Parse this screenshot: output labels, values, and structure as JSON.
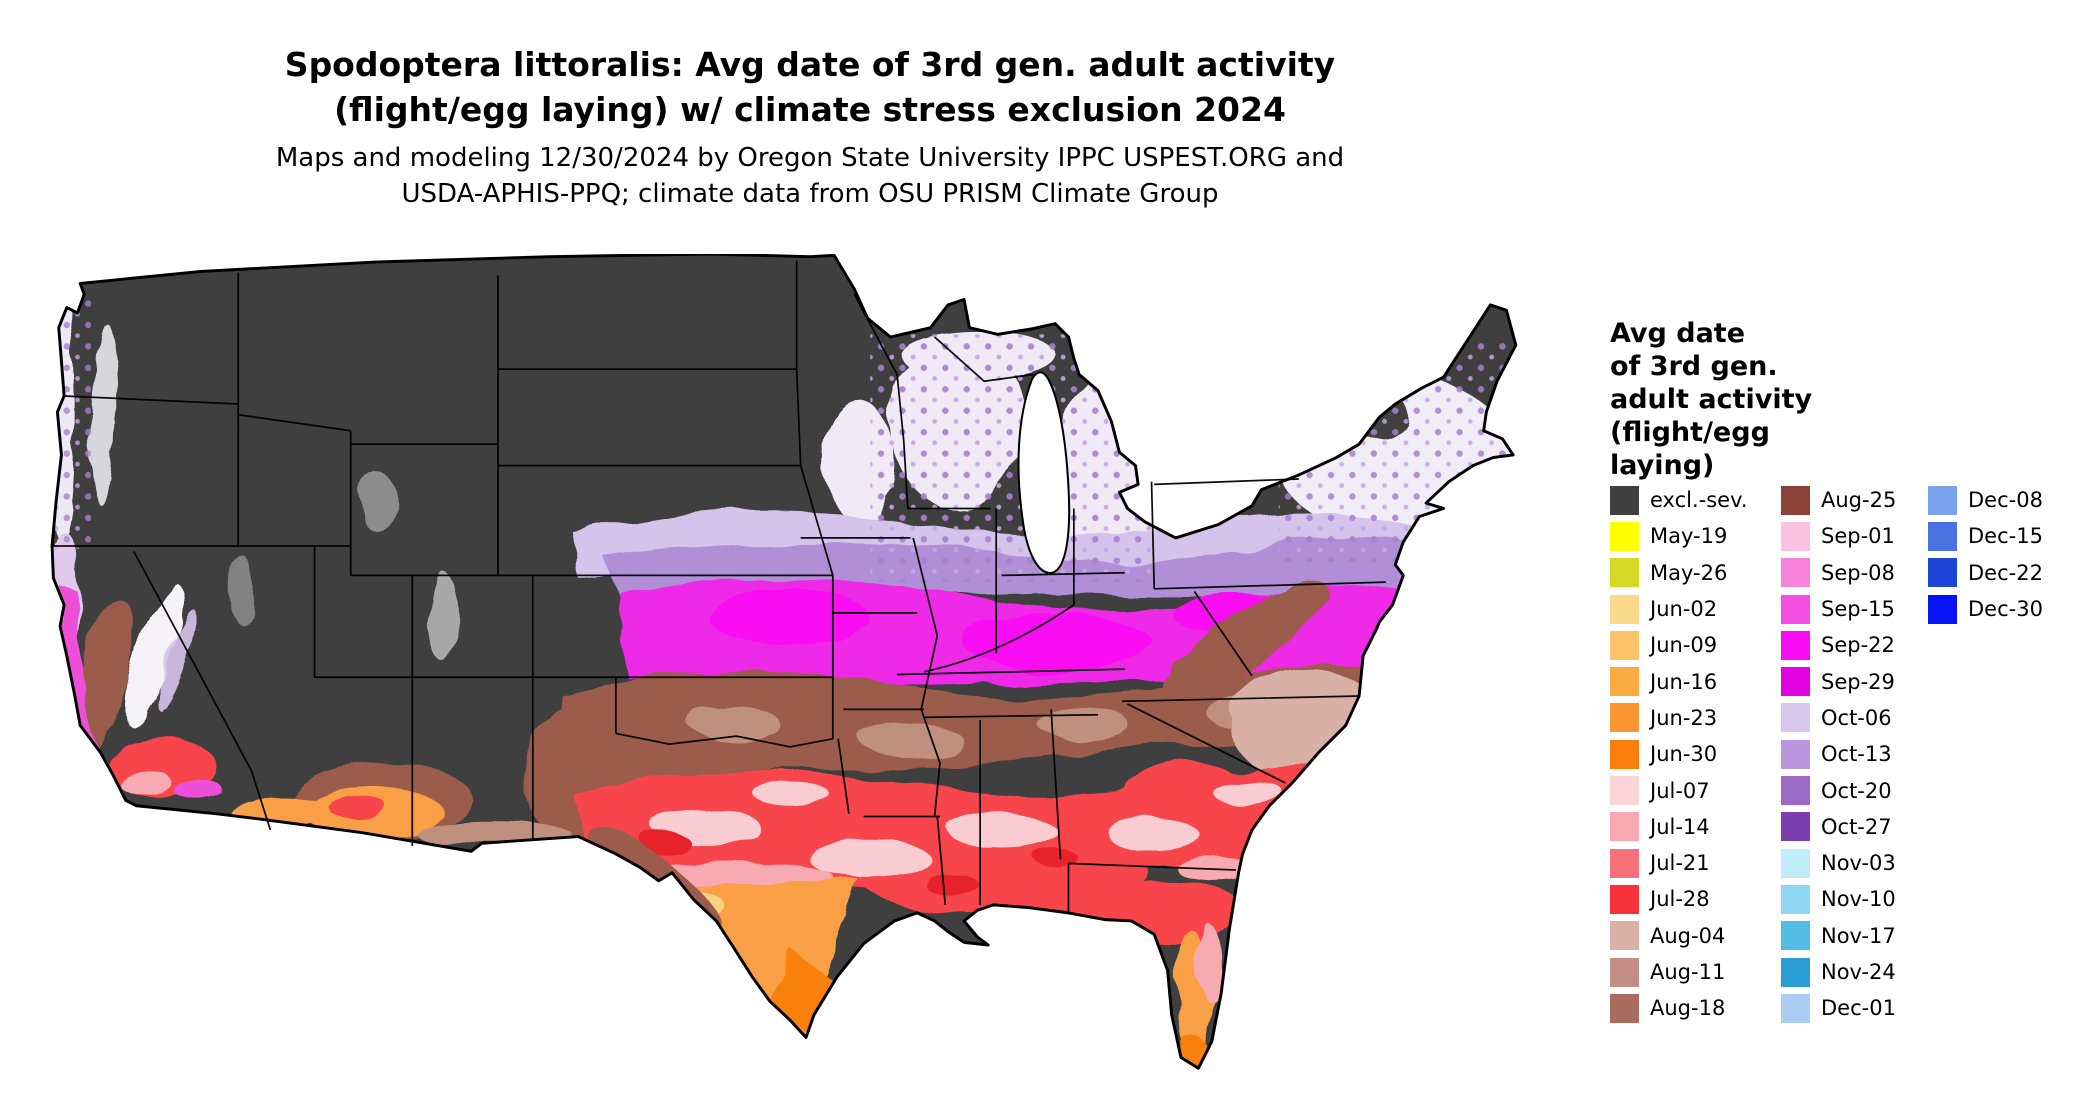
{
  "title": {
    "line1": "Spodoptera littoralis: Avg date of 3rd gen. adult activity",
    "line2": "(flight/egg laying) w/ climate stress exclusion 2024"
  },
  "subtitle": {
    "line1": "Maps and modeling 12/30/2024 by Oregon State University IPPC USPEST.ORG and",
    "line2": "USDA-APHIS-PPQ; climate data from OSU PRISM Climate Group"
  },
  "legend": {
    "title_lines": [
      "Avg date",
      "of 3rd gen.",
      "adult activity",
      "(flight/egg",
      "laying)"
    ],
    "columns": [
      [
        {
          "label": "excl.-sev.",
          "color": "#3f3f3f"
        },
        {
          "label": "May-19",
          "color": "#ffff00"
        },
        {
          "label": "May-26",
          "color": "#d6d825"
        },
        {
          "label": "Jun-02",
          "color": "#fbd98b"
        },
        {
          "label": "Jun-09",
          "color": "#fcc368"
        },
        {
          "label": "Jun-16",
          "color": "#fbaa43"
        },
        {
          "label": "Jun-23",
          "color": "#fb9632"
        },
        {
          "label": "Jun-30",
          "color": "#fa7d0d"
        },
        {
          "label": "Jul-07",
          "color": "#fbd4d7"
        },
        {
          "label": "Jul-14",
          "color": "#f9a8b1"
        },
        {
          "label": "Jul-21",
          "color": "#f7707a"
        },
        {
          "label": "Jul-28",
          "color": "#f8323c"
        },
        {
          "label": "Aug-04",
          "color": "#dab0a7"
        },
        {
          "label": "Aug-11",
          "color": "#c28e83"
        },
        {
          "label": "Aug-18",
          "color": "#a96c5f"
        }
      ],
      [
        {
          "label": "Aug-25",
          "color": "#8a4336"
        },
        {
          "label": "Sep-01",
          "color": "#fac2e0"
        },
        {
          "label": "Sep-08",
          "color": "#f782da"
        },
        {
          "label": "Sep-15",
          "color": "#f44fe2"
        },
        {
          "label": "Sep-22",
          "color": "#fa0cf4"
        },
        {
          "label": "Sep-29",
          "color": "#e203e2"
        },
        {
          "label": "Oct-06",
          "color": "#dac7ed"
        },
        {
          "label": "Oct-13",
          "color": "#bb97dd"
        },
        {
          "label": "Oct-20",
          "color": "#9b6ac7"
        },
        {
          "label": "Oct-27",
          "color": "#7b3eb1"
        },
        {
          "label": "Nov-03",
          "color": "#c3ecfb"
        },
        {
          "label": "Nov-10",
          "color": "#8fd8f3"
        },
        {
          "label": "Nov-17",
          "color": "#54bde6"
        },
        {
          "label": "Nov-24",
          "color": "#2b9ed5"
        },
        {
          "label": "Dec-01",
          "color": "#abcdf3"
        }
      ],
      [
        {
          "label": "Dec-08",
          "color": "#7aa1eb"
        },
        {
          "label": "Dec-15",
          "color": "#4a73e1"
        },
        {
          "label": "Dec-22",
          "color": "#1d45d6"
        },
        {
          "label": "Dec-30",
          "color": "#0513f6"
        }
      ]
    ]
  },
  "map_colors": {
    "background": "#ffffff",
    "excluded_severe": "#3f3f3f",
    "outline": "#000000"
  }
}
